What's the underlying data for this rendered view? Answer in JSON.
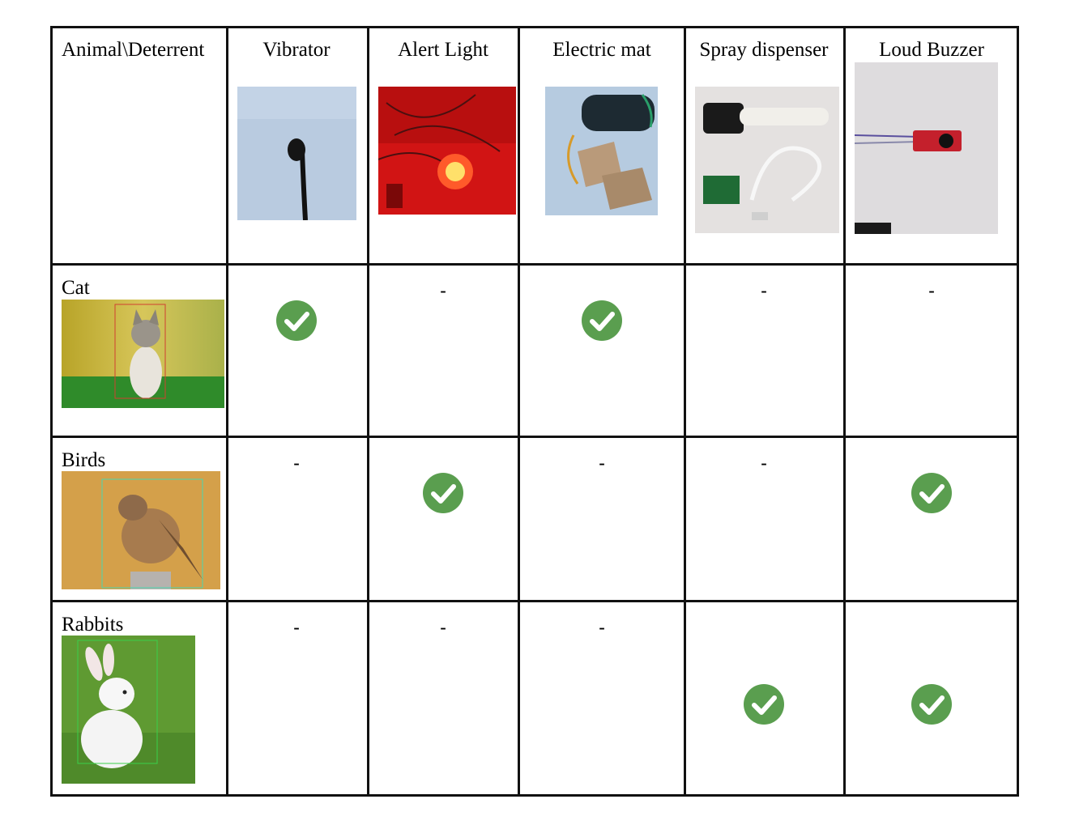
{
  "table": {
    "corner_label": "Animal\\Deterrent",
    "deterrents": [
      {
        "label": "Vibrator",
        "image": "vibrator-photo"
      },
      {
        "label": "Alert Light",
        "image": "alert-light-photo"
      },
      {
        "label": "Electric mat",
        "image": "electric-mat-photo"
      },
      {
        "label": "Spray dispenser",
        "image": "spray-dispenser-photo"
      },
      {
        "label": "Loud Buzzer",
        "image": "loud-buzzer-photo"
      }
    ],
    "animals": [
      {
        "label": "Cat",
        "image": "cat-photo",
        "marks": [
          "check",
          "-",
          "check",
          "-",
          "-"
        ]
      },
      {
        "label": "Birds",
        "image": "bird-photo",
        "marks": [
          "-",
          "check",
          "-",
          "-",
          "check"
        ]
      },
      {
        "label": "Rabbits",
        "image": "rabbit-photo",
        "marks": [
          "-",
          "-",
          "-",
          "check",
          "check"
        ]
      }
    ],
    "colors": {
      "check": "#5a9e4f",
      "grid": "#111111"
    }
  }
}
